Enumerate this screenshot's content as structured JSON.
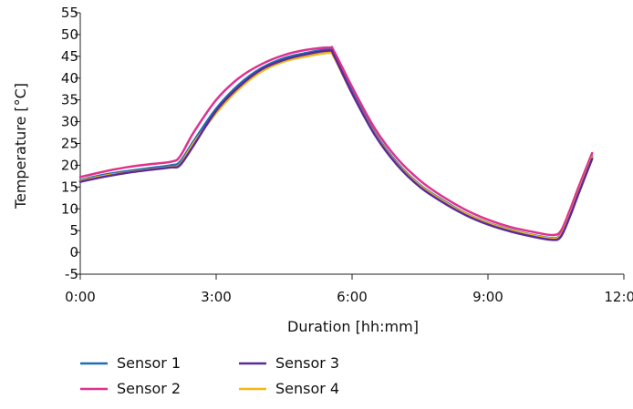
{
  "chart_data": {
    "type": "line",
    "title": "",
    "xlabel": "Duration [hh:mm]",
    "ylabel": "Temperature [°C]",
    "x_unit": "hours",
    "xlim": [
      0,
      12
    ],
    "ylim": [
      -5,
      55
    ],
    "xticks": [
      {
        "value": 0,
        "label": "0:00"
      },
      {
        "value": 3,
        "label": "3:00"
      },
      {
        "value": 6,
        "label": "6:00"
      },
      {
        "value": 9,
        "label": "9:00"
      },
      {
        "value": 12,
        "label": "12:00"
      }
    ],
    "yticks": [
      -5,
      0,
      5,
      10,
      15,
      20,
      25,
      30,
      35,
      40,
      45,
      50,
      55
    ],
    "grid": false,
    "legend_position": "bottom-left",
    "series": [
      {
        "name": "Sensor 1",
        "color": "#1f6fb5",
        "x": [
          0,
          0.5,
          1.0,
          1.5,
          2.0,
          2.2,
          2.5,
          3.0,
          3.5,
          4.0,
          4.5,
          5.0,
          5.5,
          5.6,
          6.0,
          6.5,
          7.0,
          7.5,
          8.0,
          8.5,
          9.0,
          9.5,
          10.0,
          10.4,
          10.6,
          10.8,
          11.0,
          11.3
        ],
        "y": [
          16.6,
          17.8,
          18.6,
          19.3,
          20.0,
          20.8,
          25.5,
          33.0,
          38.5,
          42.3,
          44.6,
          45.8,
          46.6,
          45.5,
          37.0,
          27.5,
          20.5,
          15.5,
          12.0,
          9.0,
          6.8,
          5.2,
          4.0,
          3.3,
          4.0,
          8.5,
          14.0,
          22.0
        ]
      },
      {
        "name": "Sensor 2",
        "color": "#e0318f",
        "x": [
          0,
          0.5,
          1.0,
          1.5,
          2.0,
          2.2,
          2.5,
          3.0,
          3.5,
          4.0,
          4.5,
          5.0,
          5.5,
          5.6,
          6.0,
          6.5,
          7.0,
          7.5,
          8.0,
          8.5,
          9.0,
          9.5,
          10.0,
          10.4,
          10.6,
          10.8,
          11.0,
          11.3
        ],
        "y": [
          17.3,
          18.5,
          19.5,
          20.2,
          20.8,
          22.0,
          27.5,
          35.0,
          40.0,
          43.2,
          45.3,
          46.5,
          47.0,
          46.2,
          38.0,
          28.5,
          21.5,
          16.5,
          12.8,
          9.8,
          7.5,
          5.8,
          4.7,
          4.0,
          4.8,
          9.5,
          15.0,
          22.8
        ]
      },
      {
        "name": "Sensor 3",
        "color": "#5b2a9a",
        "x": [
          0,
          0.5,
          1.0,
          1.5,
          2.0,
          2.2,
          2.5,
          3.0,
          3.5,
          4.0,
          4.5,
          5.0,
          5.5,
          5.6,
          6.0,
          6.5,
          7.0,
          7.5,
          8.0,
          8.5,
          9.0,
          9.5,
          10.0,
          10.4,
          10.6,
          10.8,
          11.0,
          11.3
        ],
        "y": [
          16.2,
          17.3,
          18.2,
          18.9,
          19.5,
          20.0,
          24.5,
          32.5,
          38.0,
          42.0,
          44.2,
          45.5,
          46.3,
          45.2,
          36.5,
          27.0,
          20.0,
          15.0,
          11.5,
          8.6,
          6.4,
          4.8,
          3.6,
          2.9,
          3.5,
          8.0,
          13.5,
          21.5
        ]
      },
      {
        "name": "Sensor 4",
        "color": "#f2b818",
        "x": [
          0,
          0.5,
          1.0,
          1.5,
          2.0,
          2.2,
          2.5,
          3.0,
          3.5,
          4.0,
          4.5,
          5.0,
          5.5,
          5.6,
          6.0,
          6.5,
          7.0,
          7.5,
          8.0,
          8.5,
          9.0,
          9.5,
          10.0,
          10.4,
          10.6,
          10.8,
          11.0,
          11.3
        ],
        "y": [
          16.4,
          17.5,
          18.3,
          19.0,
          19.6,
          20.2,
          25.0,
          32.0,
          37.5,
          41.5,
          43.8,
          45.0,
          45.8,
          44.8,
          36.5,
          27.2,
          20.2,
          15.3,
          11.8,
          8.9,
          6.7,
          5.1,
          3.9,
          3.2,
          3.8,
          8.3,
          13.8,
          21.8
        ]
      }
    ]
  }
}
